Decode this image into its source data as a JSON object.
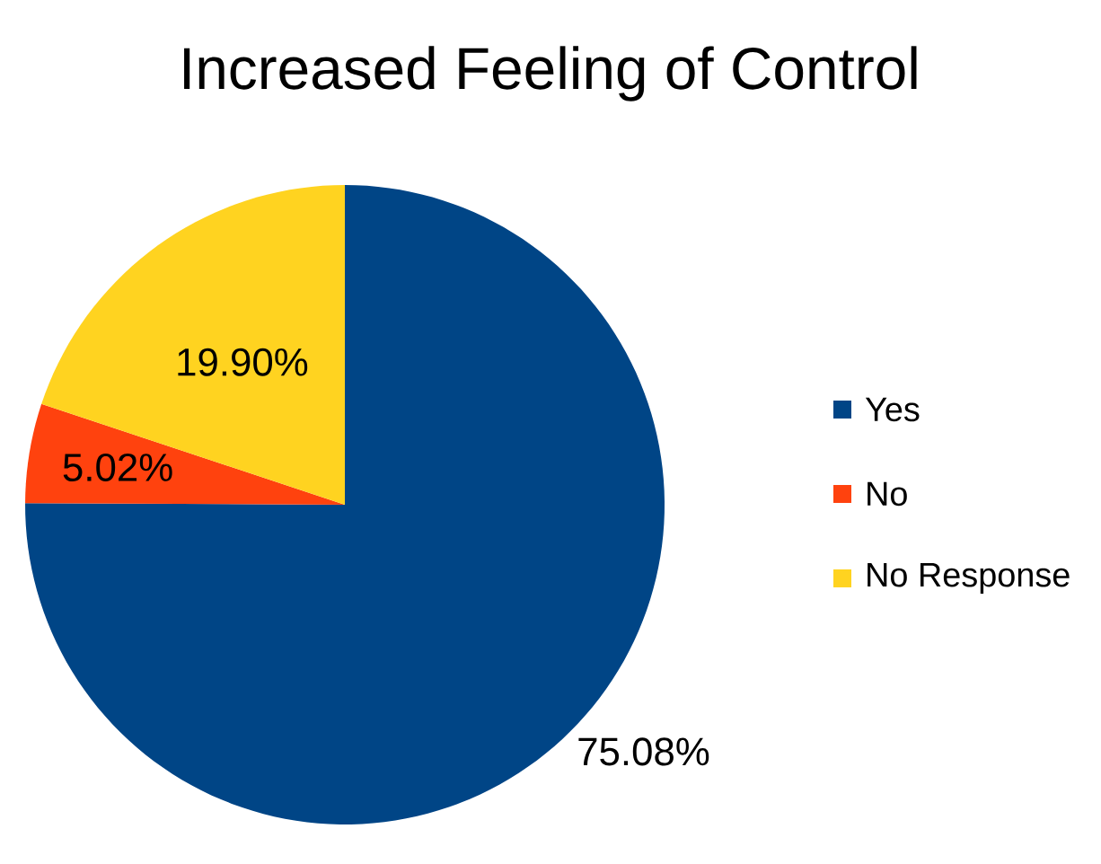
{
  "chart_data": {
    "type": "pie",
    "title": "Increased Feeling of Control",
    "categories": [
      "Yes",
      "No",
      "No Response"
    ],
    "values": [
      75.08,
      5.02,
      19.9
    ],
    "value_labels": [
      "75.08%",
      "5.02%",
      "19.90%"
    ],
    "colors": [
      "#004586",
      "#ff420e",
      "#ffd320"
    ],
    "legend": "right"
  }
}
